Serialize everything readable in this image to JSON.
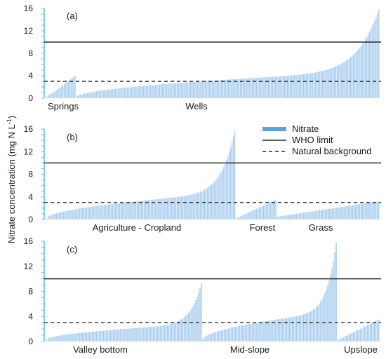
{
  "y_label": {
    "prefix": "Nitrate concentration (mg N L",
    "sup": "-1",
    "suffix": ")"
  },
  "legend": [
    {
      "label": "Nitrate",
      "style": "bar",
      "color": "#5ba3e0"
    },
    {
      "label": "WHO limit",
      "style": "solid",
      "color": "#2b2b2b"
    },
    {
      "label": "Natural background",
      "style": "dashed",
      "color": "#2b2b2b"
    }
  ],
  "colors": {
    "bar": "#a9cdee",
    "axis": "#5fb8e8",
    "line": "#2b2b2b"
  },
  "chart_data": [
    {
      "type": "bar",
      "panel_label": "(a)",
      "ylim": [
        0,
        16
      ],
      "yticks": [
        0,
        4,
        8,
        12,
        16
      ],
      "who_limit": 10,
      "natural_background": 3,
      "groups": [
        {
          "name": "Springs",
          "count": 22,
          "start": 0.3,
          "end": 4.0,
          "curve": 0.9
        },
        {
          "name": "Wells",
          "count": 226,
          "start": 0.2,
          "end": 15.8,
          "curve": 0.5
        }
      ]
    },
    {
      "type": "bar",
      "panel_label": "(b)",
      "ylim": [
        0,
        16
      ],
      "yticks": [
        0,
        4,
        8,
        12,
        16
      ],
      "who_limit": 10,
      "natural_background": 3,
      "groups": [
        {
          "name": "Agriculture - Cropland",
          "count": 138,
          "start": 0.2,
          "end": 15.8,
          "curve": 0.55
        },
        {
          "name": "Forest",
          "count": 30,
          "start": 0.2,
          "end": 3.5,
          "curve": 1.0
        },
        {
          "name": "Grass",
          "count": 75,
          "start": 0.5,
          "end": 3.2,
          "curve": 1.0
        }
      ]
    },
    {
      "type": "bar",
      "panel_label": "(c)",
      "ylim": [
        0,
        16
      ],
      "yticks": [
        0,
        4,
        8,
        12,
        16
      ],
      "who_limit": 10,
      "natural_background": 3,
      "groups": [
        {
          "name": "Valley bottom",
          "count": 110,
          "start": 0.3,
          "end": 9.3,
          "curve": 0.55
        },
        {
          "name": "Mid-slope",
          "count": 95,
          "start": 0.3,
          "end": 15.8,
          "curve": 0.55
        },
        {
          "name": "Upslope",
          "count": 30,
          "start": 0.2,
          "end": 3.5,
          "curve": 1.0
        }
      ]
    }
  ]
}
